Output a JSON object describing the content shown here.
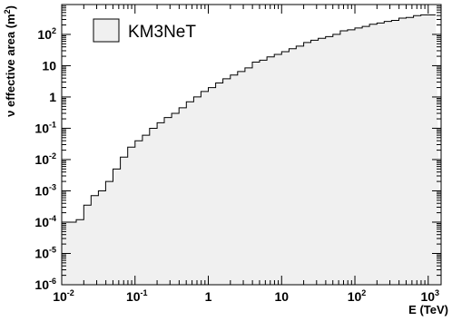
{
  "chart_data": {
    "type": "histogram-step",
    "x_scale": "log",
    "y_scale": "log",
    "xlim": [
      0.01,
      1500
    ],
    "ylim": [
      1e-06,
      900
    ],
    "xlabel": "E (TeV)",
    "ylabel_parts": {
      "prefix": "ν effective area (m",
      "exp": "2",
      "suffix": ")"
    },
    "x_ticks": [
      {
        "value": 0.01,
        "base": "10",
        "exp": "-2"
      },
      {
        "value": 0.1,
        "base": "10",
        "exp": "-1"
      },
      {
        "value": 1,
        "base": "1",
        "exp": ""
      },
      {
        "value": 10,
        "base": "10",
        "exp": ""
      },
      {
        "value": 100,
        "base": "10",
        "exp": "2"
      },
      {
        "value": 1000,
        "base": "10",
        "exp": "3"
      }
    ],
    "y_ticks": [
      {
        "value": 1e-06,
        "base": "10",
        "exp": "-6"
      },
      {
        "value": 1e-05,
        "base": "10",
        "exp": "-5"
      },
      {
        "value": 0.0001,
        "base": "10",
        "exp": "-4"
      },
      {
        "value": 0.001,
        "base": "10",
        "exp": "-3"
      },
      {
        "value": 0.01,
        "base": "10",
        "exp": "-2"
      },
      {
        "value": 0.1,
        "base": "10",
        "exp": "-1"
      },
      {
        "value": 1,
        "base": "1",
        "exp": ""
      },
      {
        "value": 10,
        "base": "10",
        "exp": ""
      },
      {
        "value": 100,
        "base": "10",
        "exp": "2"
      }
    ],
    "legend": {
      "label": "KM3NeT",
      "placement": "top-left"
    },
    "fill_color": "#f0f0f0",
    "line_color": "#000000",
    "series": [
      {
        "name": "KM3NeT",
        "bin_edges": [
          0.01,
          0.0126,
          0.0158,
          0.02,
          0.0251,
          0.0316,
          0.0398,
          0.0501,
          0.0631,
          0.0794,
          0.1,
          0.126,
          0.158,
          0.2,
          0.251,
          0.316,
          0.398,
          0.501,
          0.631,
          0.794,
          1,
          1.26,
          1.58,
          2,
          2.51,
          3.16,
          3.98,
          5.01,
          6.31,
          7.94,
          10,
          12.6,
          15.8,
          20,
          25.1,
          31.6,
          39.8,
          50.1,
          63.1,
          79.4,
          100,
          126,
          158,
          200,
          251,
          316,
          398,
          501,
          631,
          794,
          1000,
          1260
        ],
        "values": [
          0.0001,
          0.0001,
          0.00012,
          0.00035,
          0.0007,
          0.001,
          0.002,
          0.005,
          0.012,
          0.025,
          0.04,
          0.06,
          0.1,
          0.15,
          0.22,
          0.3,
          0.45,
          0.7,
          1.0,
          1.5,
          2.0,
          2.8,
          3.8,
          5.0,
          6.5,
          8.5,
          13,
          15,
          19,
          23,
          28,
          35,
          42,
          55,
          65,
          75,
          85,
          100,
          130,
          140,
          160,
          180,
          210,
          230,
          260,
          280,
          330,
          350,
          400,
          420,
          420
        ]
      }
    ]
  }
}
